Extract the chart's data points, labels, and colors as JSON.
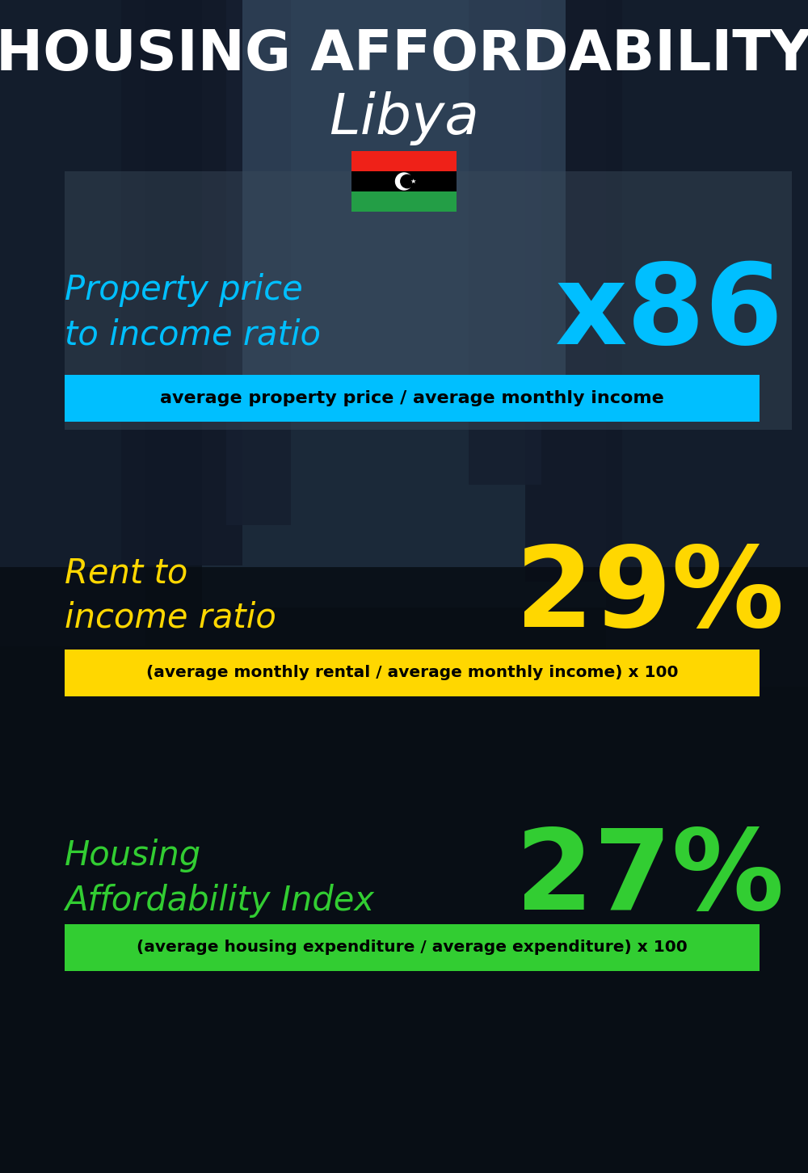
{
  "title_line1": "HOUSING AFFORDABILITY",
  "title_line2": "Libya",
  "bg_color": "#0d1520",
  "title1_color": "#ffffff",
  "title2_color": "#ffffff",
  "flag_colors": [
    "#ef2118",
    "#000000",
    "#239e46"
  ],
  "section1_label": "Property price\nto income ratio",
  "section1_value": "x86",
  "section1_label_color": "#00bfff",
  "section1_value_color": "#00bfff",
  "section1_formula": "average property price / average monthly income",
  "section1_formula_bg": "#00bfff",
  "section1_formula_color": "#000000",
  "section2_label": "Rent to\nincome ratio",
  "section2_value": "29%",
  "section2_label_color": "#ffd700",
  "section2_value_color": "#ffd700",
  "section2_formula": "(average monthly rental / average monthly income) x 100",
  "section2_formula_bg": "#ffd700",
  "section2_formula_color": "#000000",
  "section3_label": "Housing\nAffordability Index",
  "section3_value": "27%",
  "section3_label_color": "#32cd32",
  "section3_value_color": "#32cd32",
  "section3_formula": "(average housing expenditure / average expenditure) x 100",
  "section3_formula_bg": "#32cd32",
  "section3_formula_color": "#000000"
}
